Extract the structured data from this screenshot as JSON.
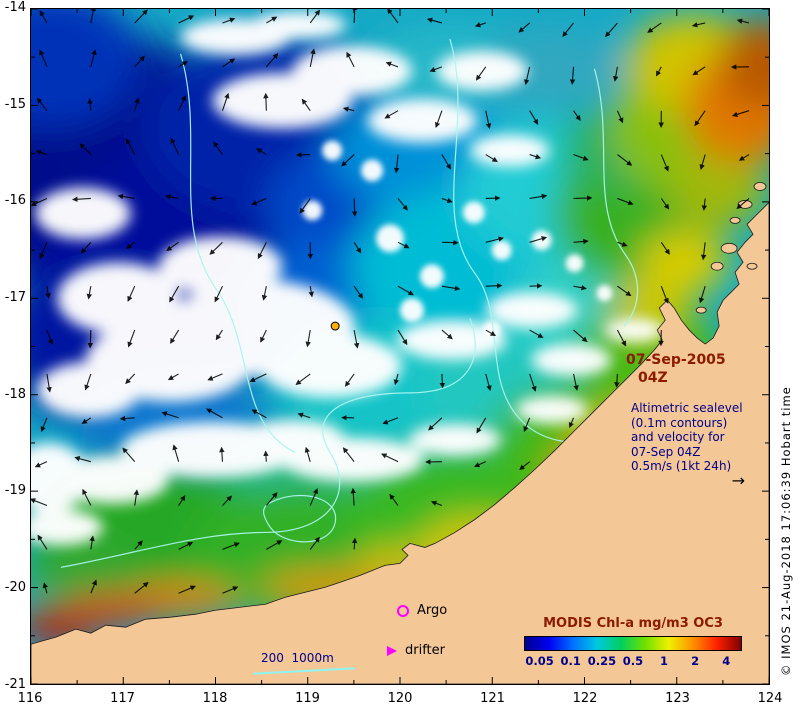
{
  "axes": {
    "x_ticks": [
      "116",
      "117",
      "118",
      "119",
      "120",
      "121",
      "122",
      "123",
      "124"
    ],
    "y_ticks": [
      "-14",
      "-15",
      "-16",
      "-17",
      "-18",
      "-19",
      "-20",
      "-21"
    ]
  },
  "annotations": {
    "date_line1": "07-Sep-2005",
    "date_line2": "04Z",
    "alti_lines": [
      "Altimetric sealevel",
      "(0.1m contours)",
      "and velocity for",
      "07-Sep 04Z",
      "0.5m/s (1kt 24h)"
    ],
    "velocity_arrow": "→",
    "argo_label": "Argo",
    "drifter_label": "drifter",
    "bathy_label": "200  1000m"
  },
  "colorbar": {
    "title": "MODIS Chl-a mg/m3 OC3",
    "tick_labels": [
      "0.05",
      "0.1",
      "0.25",
      "0.5",
      "1",
      "2",
      "4"
    ]
  },
  "credit": "© IMOS 21-Aug-2018 17:06:39 Hobart time",
  "colors": {
    "land": "#f4c796",
    "date_text": "#8B1A00",
    "annotation_text": "#00008B",
    "marker_magenta": "#FF00FF",
    "contour_cyan": "#aaf5ef",
    "colorbar_gradient": [
      "#00008F",
      "#0000F0",
      "#0070FF",
      "#00C8E0",
      "#00D060",
      "#70E000",
      "#F0F000",
      "#FF9000",
      "#FF2000",
      "#800000"
    ]
  }
}
